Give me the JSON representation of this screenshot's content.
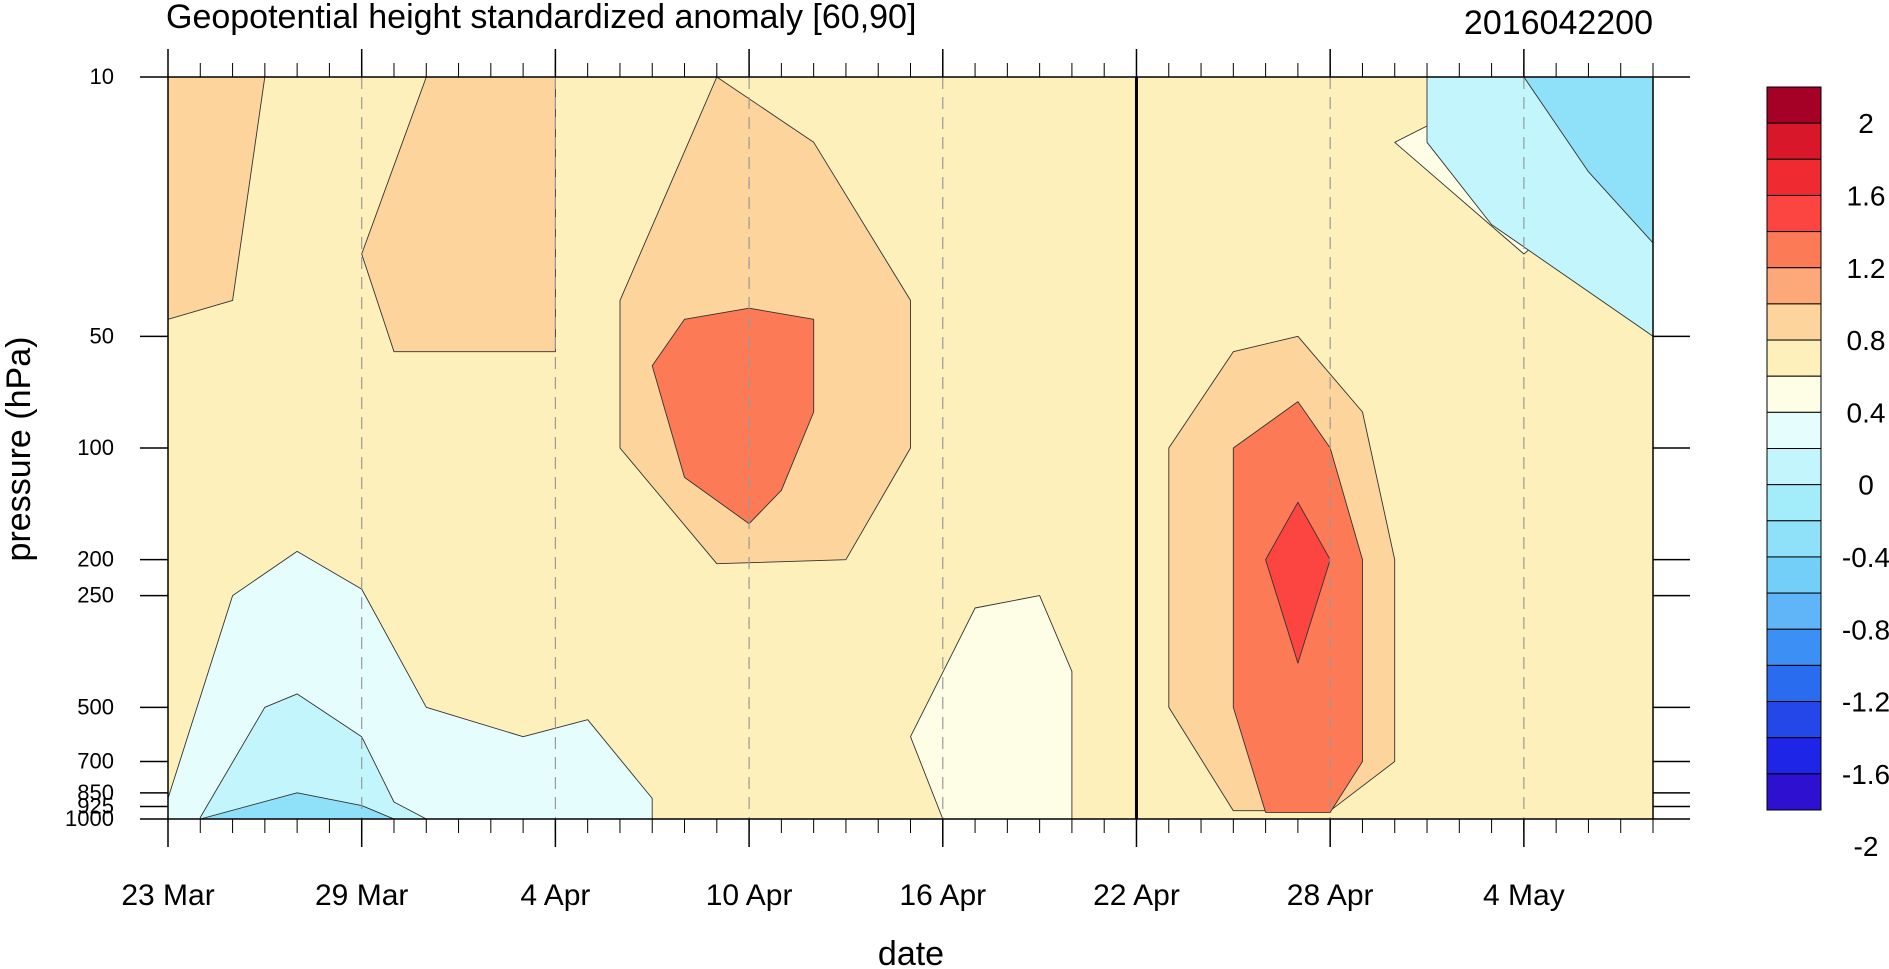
{
  "chart_data": {
    "type": "heatmap",
    "title": "Geopotential height standardized anomaly [60,90]",
    "timestamp": "2016042200",
    "xlabel": "date",
    "ylabel": "pressure (hPa)",
    "x_ticks": [
      "23 Mar",
      "29 Mar",
      "4 Apr",
      "10 Apr",
      "16 Apr",
      "22 Apr",
      "28 Apr",
      "4 May"
    ],
    "x_start": "23 Mar",
    "x_end": "8 May",
    "y_ticks": [
      10,
      50,
      100,
      200,
      250,
      500,
      700,
      850,
      925,
      1000
    ],
    "y_range": [
      1000,
      10
    ],
    "y_scale": "log",
    "vertical_marker": "22 Apr",
    "colorbar": {
      "labels": [
        "2",
        "1.6",
        "1.2",
        "0.8",
        "0.4",
        "0",
        "-0.4",
        "-0.8",
        "-1.2",
        "-1.6",
        "-2"
      ],
      "colors": [
        "#a50026",
        "#d8172a",
        "#f02a31",
        "#fc4540",
        "#fd7a57",
        "#fca878",
        "#fcd49c",
        "#fdf0bb",
        "#fefde6",
        "#e6fdfd",
        "#c2f6fc",
        "#a3ecfa",
        "#8fe0f9",
        "#74cff8",
        "#5fb5f8",
        "#3c90f5",
        "#2a6cf0",
        "#2447ea",
        "#1f25e7",
        "#2d10d0"
      ]
    },
    "contour_levels": [
      -0.8,
      -0.4,
      0,
      0.4,
      0.8,
      1.2,
      1.6
    ],
    "contour_regions": [
      {
        "level": 0.8,
        "shape": [
          [
            "23 Mar",
            10
          ],
          [
            "26 Mar",
            10
          ],
          [
            "25 Mar",
            40
          ],
          [
            "23 Mar",
            45
          ]
        ]
      },
      {
        "level": 0.8,
        "shape": [
          [
            "31 Mar",
            10
          ],
          [
            "4 Apr",
            10
          ],
          [
            "4 Apr",
            55
          ],
          [
            "30 Mar",
            55
          ],
          [
            "29 Mar",
            30
          ]
        ]
      },
      {
        "level": 0.8,
        "shape": [
          [
            "9 Apr",
            10
          ],
          [
            "12 Apr",
            15
          ],
          [
            "15 Apr",
            40
          ],
          [
            "15 Apr",
            100
          ],
          [
            "13 Apr",
            200
          ],
          [
            "9 Apr",
            205
          ],
          [
            "6 Apr",
            100
          ],
          [
            "6 Apr",
            40
          ]
        ]
      },
      {
        "level": 1.2,
        "shape": [
          [
            "8 Apr",
            45
          ],
          [
            "10 Apr",
            42
          ],
          [
            "12 Apr",
            45
          ],
          [
            "12 Apr",
            80
          ],
          [
            "11 Apr",
            130
          ],
          [
            "10 Apr",
            160
          ],
          [
            "8 Apr",
            120
          ],
          [
            "7 Apr",
            60
          ]
        ]
      },
      {
        "level": 0.8,
        "shape": [
          [
            "23 Apr",
            100
          ],
          [
            "25 Apr",
            55
          ],
          [
            "27 Apr",
            50
          ],
          [
            "29 Apr",
            80
          ],
          [
            "30 Apr",
            200
          ],
          [
            "30 Apr",
            700
          ],
          [
            "28 Apr",
            950
          ],
          [
            "25 Apr",
            950
          ],
          [
            "23 Apr",
            500
          ]
        ]
      },
      {
        "level": 1.2,
        "shape": [
          [
            "25 Apr",
            100
          ],
          [
            "27 Apr",
            75
          ],
          [
            "28 Apr",
            100
          ],
          [
            "29 Apr",
            200
          ],
          [
            "29 Apr",
            700
          ],
          [
            "28 Apr",
            960
          ],
          [
            "26 Apr",
            960
          ],
          [
            "25 Apr",
            500
          ]
        ]
      },
      {
        "level": 1.6,
        "shape": [
          [
            "27 Apr",
            140
          ],
          [
            "28 Apr",
            200
          ],
          [
            "27 Apr",
            380
          ],
          [
            "26 Apr",
            200
          ]
        ]
      },
      {
        "level": 0.4,
        "shape": [
          [
            "4 May",
            10
          ],
          [
            "8 May",
            10
          ],
          [
            "8 May",
            15
          ],
          [
            "4 May",
            30
          ],
          [
            "30 Apr",
            15
          ]
        ]
      },
      {
        "level": -0.4,
        "shape": [
          [
            "1 May",
            10
          ],
          [
            "8 May",
            10
          ],
          [
            "8 May",
            50
          ],
          [
            "3 May",
            25
          ],
          [
            "1 May",
            15
          ]
        ]
      },
      {
        "level": -0.8,
        "shape": [
          [
            "4 May",
            10
          ],
          [
            "8 May",
            10
          ],
          [
            "8 May",
            28
          ],
          [
            "6 May",
            18
          ]
        ]
      },
      {
        "level": 0,
        "shape": [
          [
            "23 Mar",
            880
          ],
          [
            "25 Mar",
            250
          ],
          [
            "27 Mar",
            190
          ],
          [
            "29 Mar",
            240
          ],
          [
            "31 Mar",
            500
          ],
          [
            "3 Apr",
            600
          ],
          [
            "5 Apr",
            540
          ],
          [
            "7 Apr",
            880
          ],
          [
            "7 Apr",
            1000
          ],
          [
            "23 Mar",
            1000
          ]
        ]
      },
      {
        "level": -0.4,
        "shape": [
          [
            "24 Mar",
            990
          ],
          [
            "26 Mar",
            500
          ],
          [
            "27 Mar",
            460
          ],
          [
            "29 Mar",
            600
          ],
          [
            "30 Mar",
            900
          ],
          [
            "31 Mar",
            1000
          ],
          [
            "24 Mar",
            1000
          ]
        ]
      },
      {
        "level": -0.8,
        "shape": [
          [
            "24 Mar",
            1000
          ],
          [
            "27 Mar",
            850
          ],
          [
            "29 Mar",
            920
          ],
          [
            "30 Mar",
            1000
          ]
        ]
      },
      {
        "level": 0,
        "shape": [
          [
            "18 Apr",
            900
          ],
          [
            "19 Apr",
            870
          ],
          [
            "20 Apr",
            1000
          ],
          [
            "17 Apr",
            1000
          ]
        ]
      },
      {
        "level": 0.4,
        "shape": [
          [
            "15 Apr",
            600
          ],
          [
            "17 Apr",
            270
          ],
          [
            "19 Apr",
            250
          ],
          [
            "20 Apr",
            400
          ],
          [
            "20 Apr",
            1000
          ],
          [
            "16 Apr",
            1000
          ]
        ]
      }
    ]
  }
}
